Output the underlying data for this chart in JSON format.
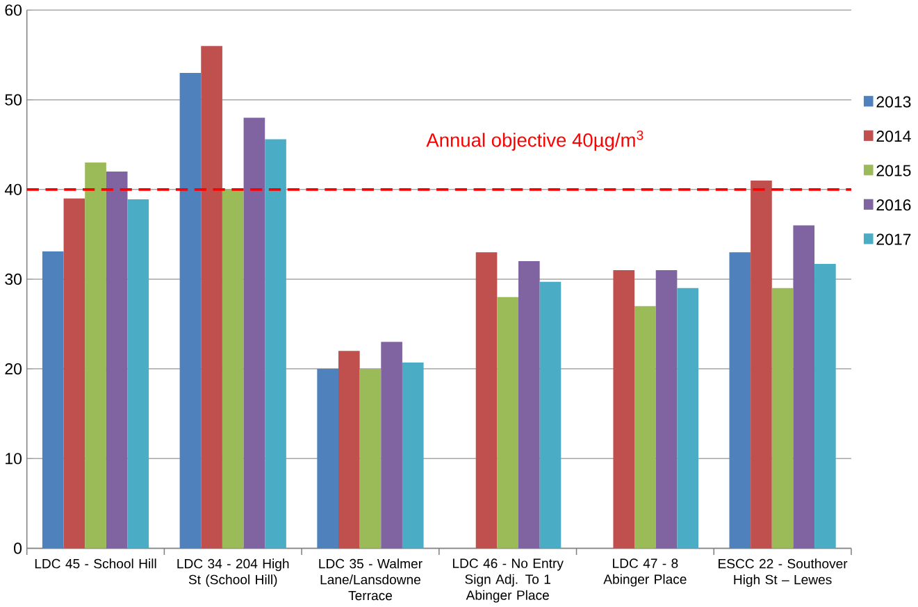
{
  "chart_data": {
    "type": "bar",
    "categories": [
      "LDC 45 - School Hill",
      "LDC 34 -  204 High St (School Hill)",
      "LDC 35 -  Walmer Lane/Lansdowne Terrace",
      "LDC 46 - No Entry Sign Adj. To 1 Abinger Place",
      "LDC 47 - 8 Abinger Place",
      "ESCC 22 - Southover High St – Lewes"
    ],
    "series": [
      {
        "name": "2013",
        "color": "#4f81bd",
        "values": [
          33.1,
          53,
          20,
          null,
          null,
          33
        ]
      },
      {
        "name": "2014",
        "color": "#c0504d",
        "values": [
          39,
          56,
          22,
          33,
          31,
          41
        ]
      },
      {
        "name": "2015",
        "color": "#9bbb59",
        "values": [
          43,
          40,
          20,
          28,
          27,
          29
        ]
      },
      {
        "name": "2016",
        "color": "#8064a2",
        "values": [
          42,
          48,
          23,
          32,
          31,
          36
        ]
      },
      {
        "name": "2017",
        "color": "#4bacc6",
        "values": [
          38.9,
          45.6,
          20.7,
          29.7,
          29,
          31.7
        ]
      }
    ],
    "ylim": [
      0,
      60
    ],
    "yticks": [
      0,
      10,
      20,
      30,
      40,
      50,
      60
    ],
    "grid": "y",
    "legend": "right",
    "ref_lines": [
      {
        "axis": "y",
        "value": 40,
        "label": "Annual objective 40µg/m$^{3}$",
        "color": "#ff0000",
        "line_style": "dashed"
      }
    ]
  }
}
